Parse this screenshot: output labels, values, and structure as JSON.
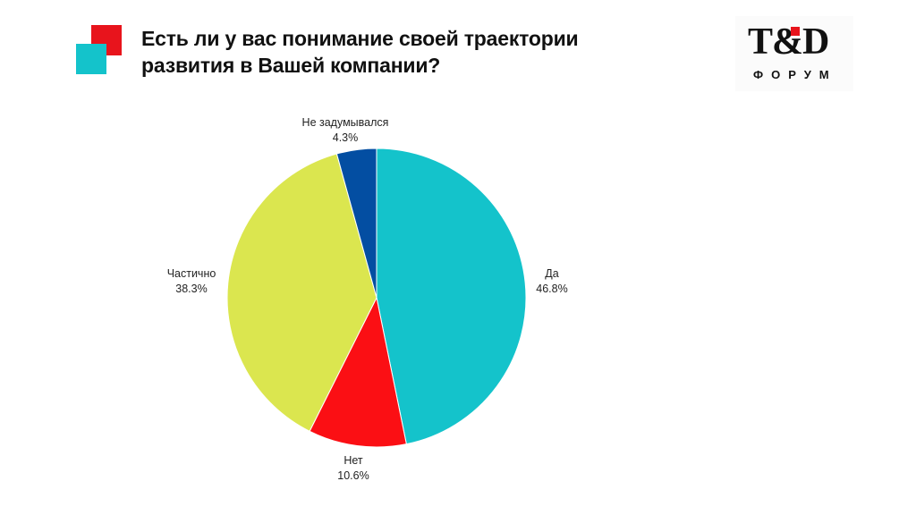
{
  "header": {
    "title_line1": "Есть ли у вас понимание своей траектории",
    "title_line2": "развития в Вашей компании?"
  },
  "logo": {
    "main": "T&D",
    "sub": "ФОРУМ"
  },
  "colors": {
    "accent_red": "#e8141c",
    "accent_teal": "#14c3cb"
  },
  "chart_data": {
    "type": "pie",
    "slices": [
      {
        "label": "Да",
        "value": 46.8,
        "display": "46.8%",
        "color": "#14c3cb"
      },
      {
        "label": "Нет",
        "value": 10.6,
        "display": "10.6%",
        "color": "#fb0f14"
      },
      {
        "label": "Частично",
        "value": 38.3,
        "display": "38.3%",
        "color": "#dbe64f"
      },
      {
        "label": "Не задумывался",
        "value": 4.3,
        "display": "4.3%",
        "color": "#034ea2"
      }
    ],
    "start": "12 o'clock",
    "direction": "clockwise",
    "legend": "none"
  }
}
